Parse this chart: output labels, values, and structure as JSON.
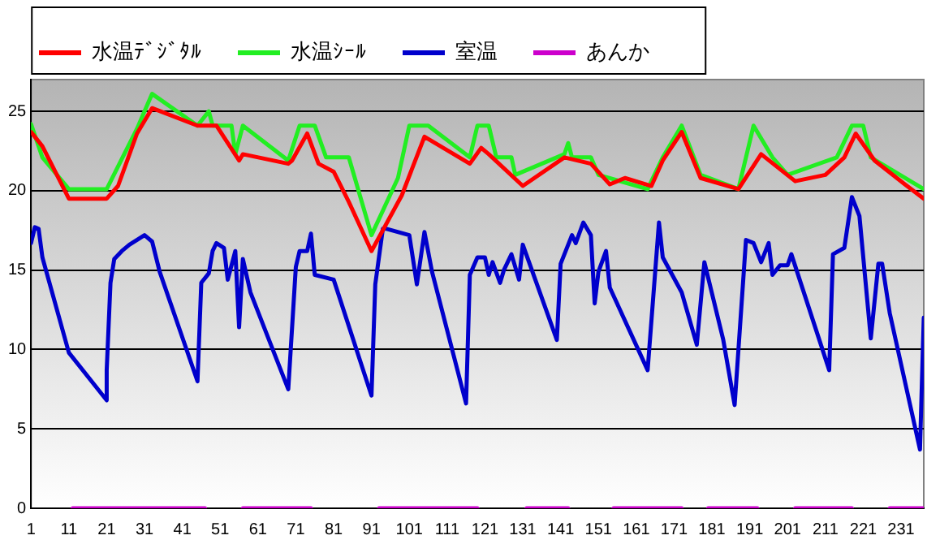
{
  "chart_data": {
    "type": "line",
    "xlim": [
      1,
      237
    ],
    "xticks": [
      1,
      11,
      21,
      31,
      41,
      51,
      61,
      71,
      81,
      91,
      101,
      111,
      121,
      131,
      141,
      151,
      161,
      171,
      181,
      191,
      201,
      211,
      221,
      231
    ],
    "ylim": [
      0,
      27
    ],
    "yticks": [
      0,
      5,
      10,
      15,
      20,
      25
    ],
    "grid": "y",
    "legend": "top",
    "marker": "none",
    "line_style": "solid",
    "series": [
      {
        "name": "水温ﾃﾞｼﾞﾀﾙ",
        "color": "#ff0000",
        "x": [
          1,
          4,
          11,
          21,
          24,
          29,
          33,
          45,
          50,
          56,
          57,
          69,
          70,
          74,
          77,
          81,
          85,
          91,
          99,
          105,
          117,
          120,
          122,
          131,
          142,
          149,
          154,
          158,
          165,
          168,
          173,
          178,
          188,
          194,
          203,
          211,
          216,
          219,
          224,
          232,
          237
        ],
        "values": [
          23.7,
          22.8,
          19.5,
          19.5,
          20.3,
          23.6,
          25.2,
          24.1,
          24.1,
          21.9,
          22.3,
          21.7,
          21.9,
          23.6,
          21.7,
          21.2,
          19.3,
          16.2,
          19.7,
          23.4,
          21.7,
          22.7,
          22.3,
          20.3,
          22.1,
          21.7,
          20.4,
          20.8,
          20.3,
          21.9,
          23.7,
          20.8,
          20.1,
          22.3,
          20.6,
          21.0,
          22.1,
          23.6,
          21.9,
          20.4,
          19.5
        ]
      },
      {
        "name": "水温ｼｰﾙ",
        "color": "#22ee22",
        "x": [
          1,
          4,
          11,
          21,
          29,
          33,
          45,
          48,
          49,
          54,
          55,
          57,
          69,
          72,
          76,
          79,
          85,
          91,
          98,
          101,
          106,
          117,
          119,
          122,
          124,
          128,
          129,
          142,
          143,
          144,
          149,
          151,
          164,
          168,
          173,
          178,
          188,
          192,
          197,
          201,
          214,
          218,
          221,
          223,
          237
        ],
        "values": [
          24.2,
          22.1,
          20.1,
          20.1,
          23.9,
          26.1,
          24.1,
          25.0,
          24.1,
          24.1,
          22.3,
          24.1,
          21.9,
          24.1,
          24.1,
          22.1,
          22.1,
          17.2,
          20.8,
          24.1,
          24.1,
          22.1,
          24.1,
          24.1,
          22.1,
          22.1,
          21.0,
          22.3,
          23.0,
          22.1,
          22.1,
          21.0,
          20.1,
          22.1,
          24.1,
          21.0,
          20.1,
          24.1,
          22.1,
          21.0,
          22.1,
          24.1,
          24.1,
          22.1,
          20.1
        ]
      },
      {
        "name": "室温",
        "color": "#0000cc",
        "x": [
          1,
          2,
          3,
          4,
          11,
          21,
          21,
          22,
          23,
          25,
          27,
          31,
          33,
          35,
          45,
          46,
          48,
          49,
          50,
          52,
          53,
          55,
          56,
          57,
          59,
          69,
          71,
          72,
          74,
          75,
          76,
          81,
          91,
          92,
          94,
          95,
          101,
          103,
          105,
          107,
          116,
          117,
          119,
          121,
          122,
          123,
          125,
          126,
          128,
          130,
          131,
          140,
          141,
          144,
          145,
          147,
          149,
          150,
          151,
          153,
          154,
          164,
          167,
          168,
          173,
          177,
          179,
          184,
          187,
          190,
          192,
          194,
          196,
          197,
          199,
          201,
          202,
          212,
          213,
          216,
          218,
          220,
          223,
          225,
          226,
          228,
          236,
          237
        ],
        "values": [
          16.7,
          17.7,
          17.6,
          15.8,
          9.8,
          6.8,
          8.7,
          14.2,
          15.7,
          16.2,
          16.6,
          17.2,
          16.8,
          14.9,
          8.0,
          14.2,
          14.8,
          16.2,
          16.7,
          16.4,
          14.4,
          16.2,
          11.4,
          15.7,
          13.6,
          7.5,
          15.2,
          16.2,
          16.2,
          17.3,
          14.7,
          14.4,
          7.1,
          14.1,
          17.6,
          17.6,
          17.2,
          14.1,
          17.4,
          14.9,
          6.6,
          14.7,
          15.8,
          15.8,
          14.7,
          15.5,
          14.2,
          15.0,
          16.0,
          14.4,
          16.6,
          10.6,
          15.4,
          17.2,
          16.7,
          18.0,
          17.2,
          12.9,
          14.9,
          16.2,
          13.9,
          8.7,
          18.0,
          15.8,
          13.6,
          10.3,
          15.5,
          10.6,
          6.5,
          16.9,
          16.7,
          15.5,
          16.7,
          14.7,
          15.3,
          15.3,
          16.0,
          8.7,
          16.0,
          16.4,
          19.6,
          18.4,
          10.7,
          15.4,
          15.4,
          12.3,
          3.7,
          12.0
        ]
      },
      {
        "name": "あんか",
        "color": "#cc00cc",
        "x": [
          12,
          47,
          48,
          57,
          75,
          76,
          93,
          119,
          120,
          132,
          143,
          144,
          155,
          173,
          174,
          180,
          193,
          194,
          203,
          218,
          219,
          228,
          237
        ],
        "values": [
          0,
          0,
          null,
          0,
          0,
          null,
          0,
          0,
          null,
          0,
          0,
          null,
          0,
          0,
          null,
          0,
          0,
          null,
          0,
          0,
          null,
          0,
          0
        ]
      }
    ]
  }
}
